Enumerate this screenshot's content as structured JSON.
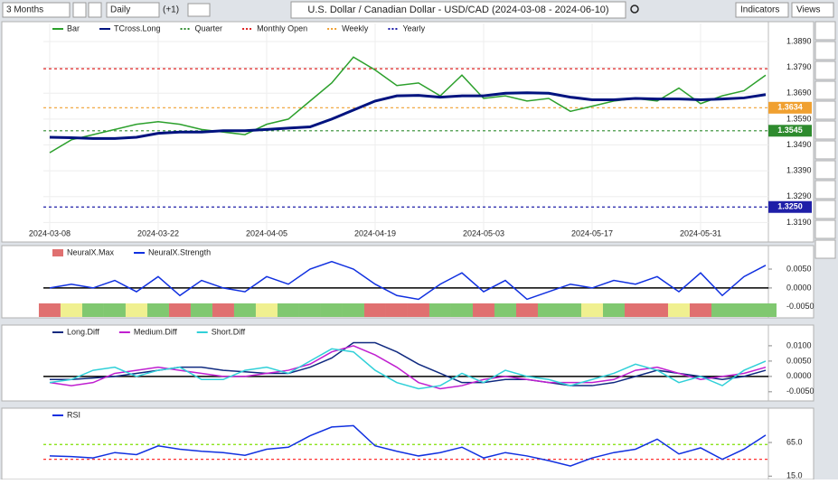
{
  "toolbar": {
    "range": "3 Months",
    "interval": "Daily",
    "offset": "(+1)",
    "title": "U.S. Dollar / Canadian Dollar - USD/CAD (2024-03-08 - 2024-06-10)",
    "indicators": "Indicators",
    "views": "Views"
  },
  "chart_data": [
    {
      "type": "line",
      "xlim": [
        -0.58,
        66.25
      ],
      "ylim": [
        1.316,
        1.396
      ],
      "grid": true,
      "xticks": [
        {
          "value": 0,
          "label": "2024-03-08"
        },
        {
          "value": 10,
          "label": "2024-03-22"
        },
        {
          "value": 20,
          "label": "2024-04-05"
        },
        {
          "value": 30,
          "label": "2024-04-19"
        },
        {
          "value": 40,
          "label": "2024-05-03"
        },
        {
          "value": 50,
          "label": "2024-05-17"
        },
        {
          "value": 60,
          "label": "2024-05-31"
        }
      ],
      "yticks": [
        {
          "value": 1.389,
          "label": "1.3890"
        },
        {
          "value": 1.379,
          "label": "1.3790"
        },
        {
          "value": 1.369,
          "label": "1.3690"
        },
        {
          "value": 1.359,
          "label": "1.3590"
        },
        {
          "value": 1.349,
          "label": "1.3490"
        },
        {
          "value": 1.339,
          "label": "1.3390"
        },
        {
          "value": 1.329,
          "label": "1.3290"
        },
        {
          "value": 1.319,
          "label": "1.3190"
        }
      ],
      "x": [
        0,
        2,
        4,
        6,
        8,
        10,
        12,
        14,
        16,
        18,
        20,
        22,
        24,
        26,
        28,
        30,
        32,
        34,
        36,
        38,
        40,
        42,
        44,
        46,
        48,
        50,
        52,
        54,
        56,
        58,
        60,
        62,
        64,
        66
      ],
      "series": [
        {
          "name": "Bar",
          "color": "#2ca02c",
          "values": [
            1.346,
            1.351,
            1.353,
            1.355,
            1.357,
            1.358,
            1.357,
            1.355,
            1.354,
            1.353,
            1.357,
            1.359,
            1.366,
            1.373,
            1.383,
            1.378,
            1.372,
            1.373,
            1.368,
            1.376,
            1.367,
            1.368,
            1.366,
            1.367,
            1.362,
            1.364,
            1.366,
            1.367,
            1.366,
            1.371,
            1.365,
            1.368,
            1.37,
            1.376
          ]
        },
        {
          "name": "TCross.Long",
          "color": "#00137f",
          "values": [
            1.352,
            1.3518,
            1.3515,
            1.3515,
            1.352,
            1.3535,
            1.354,
            1.354,
            1.3545,
            1.3545,
            1.355,
            1.3555,
            1.356,
            1.359,
            1.3625,
            1.366,
            1.368,
            1.3682,
            1.3675,
            1.368,
            1.368,
            1.369,
            1.3692,
            1.369,
            1.3675,
            1.3665,
            1.3665,
            1.367,
            1.3668,
            1.3668,
            1.3665,
            1.3668,
            1.3672,
            1.3685
          ]
        }
      ],
      "levels": [
        {
          "name": "Quarter",
          "color": "#2e8b2e",
          "value": 1.3545
        },
        {
          "name": "Monthly Open",
          "color": "#dd2222",
          "value": 1.3785
        },
        {
          "name": "Weekly",
          "color": "#f0a030",
          "value": 1.3634
        },
        {
          "name": "Yearly",
          "color": "#1f1fa8",
          "value": 1.325,
          "label": "1.3250"
        }
      ]
    },
    {
      "type": "line",
      "xlim": [
        -0.58,
        66.25
      ],
      "ylim": [
        -0.006,
        0.0093
      ],
      "baseline": 0,
      "yticks": [
        {
          "value": 0.005,
          "label": "0.0050"
        },
        {
          "value": 0,
          "label": "0.0000"
        },
        {
          "value": -0.005,
          "label": "-0.0050"
        }
      ],
      "x": [
        0,
        2,
        4,
        6,
        8,
        10,
        12,
        14,
        16,
        18,
        20,
        22,
        24,
        26,
        28,
        30,
        32,
        34,
        36,
        38,
        40,
        42,
        44,
        46,
        48,
        50,
        52,
        54,
        56,
        58,
        60,
        62,
        64,
        66
      ],
      "max_name": "NeuralX.Max",
      "strip_colors": [
        "#e07070",
        "#f0f090",
        "#80c870",
        "#80c870",
        "#f0f090",
        "#80c870",
        "#e07070",
        "#80c870",
        "#e07070",
        "#80c870",
        "#f0f090",
        "#80c870",
        "#80c870",
        "#80c870",
        "#80c870",
        "#e07070",
        "#e07070",
        "#e07070",
        "#80c870",
        "#80c870",
        "#e07070",
        "#80c870",
        "#e07070",
        "#80c870",
        "#80c870",
        "#f0f090",
        "#80c870",
        "#e07070",
        "#e07070",
        "#f0f090",
        "#e07070",
        "#80c870",
        "#80c870",
        "#80c870"
      ],
      "series": [
        {
          "name": "NeuralX.Strength",
          "color": "#1030e0",
          "values": [
            0,
            0.001,
            0,
            0.002,
            -0.001,
            0.003,
            -0.002,
            0.002,
            0,
            -0.001,
            0.003,
            0.001,
            0.005,
            0.007,
            0.005,
            0.001,
            -0.002,
            -0.003,
            0.001,
            0.004,
            -0.001,
            0.002,
            -0.003,
            -0.001,
            0.001,
            0,
            0.002,
            0.001,
            0.003,
            -0.001,
            0.004,
            -0.002,
            0.003,
            0.006
          ]
        }
      ]
    },
    {
      "type": "line",
      "xlim": [
        -0.58,
        66.25
      ],
      "ylim": [
        -0.0074,
        0.0138
      ],
      "baseline": 0,
      "yticks": [
        {
          "value": 0.01,
          "label": "0.0100"
        },
        {
          "value": 0.005,
          "label": "0.0050"
        },
        {
          "value": 0,
          "label": "0.0000"
        },
        {
          "value": -0.005,
          "label": "-0.0050"
        }
      ],
      "x": [
        0,
        2,
        4,
        6,
        8,
        10,
        12,
        14,
        16,
        18,
        20,
        22,
        24,
        26,
        28,
        30,
        32,
        34,
        36,
        38,
        40,
        42,
        44,
        46,
        48,
        50,
        52,
        54,
        56,
        58,
        60,
        62,
        64,
        66
      ],
      "series": [
        {
          "name": "Long.Diff",
          "color": "#102a80",
          "values": [
            -0.001,
            -0.001,
            -0.0005,
            0,
            0.001,
            0.002,
            0.003,
            0.003,
            0.002,
            0.0015,
            0.001,
            0.001,
            0.003,
            0.006,
            0.011,
            0.011,
            0.008,
            0.004,
            0.001,
            -0.002,
            -0.002,
            -0.001,
            -0.001,
            -0.002,
            -0.003,
            -0.003,
            -0.002,
            0,
            0.002,
            0.001,
            0,
            -0.001,
            0,
            0.002
          ]
        },
        {
          "name": "Medium.Diff",
          "color": "#c020d0",
          "values": [
            -0.002,
            -0.003,
            -0.002,
            0.001,
            0.002,
            0.003,
            0.002,
            0.001,
            0,
            0,
            0.001,
            0.002,
            0.004,
            0.008,
            0.01,
            0.007,
            0.003,
            -0.002,
            -0.004,
            -0.003,
            -0.001,
            0,
            -0.001,
            -0.002,
            -0.002,
            -0.002,
            -0.001,
            0.002,
            0.003,
            0.001,
            -0.001,
            0,
            0.001,
            0.003
          ]
        },
        {
          "name": "Short.Diff",
          "color": "#30d0d8",
          "values": [
            -0.002,
            -0.001,
            0.002,
            0.003,
            0,
            0.002,
            0.003,
            -0.001,
            -0.001,
            0.002,
            0.003,
            0.001,
            0.005,
            0.009,
            0.008,
            0.002,
            -0.002,
            -0.004,
            -0.003,
            0.001,
            -0.002,
            0.002,
            0,
            -0.001,
            -0.003,
            -0.001,
            0.001,
            0.004,
            0.002,
            -0.002,
            0,
            -0.003,
            0.002,
            0.005
          ]
        }
      ]
    },
    {
      "type": "line",
      "xlim": [
        -0.58,
        66.25
      ],
      "ylim": [
        10,
        108
      ],
      "yticks": [
        {
          "value": 65,
          "label": "65.0"
        },
        {
          "value": 15,
          "label": "15.0"
        }
      ],
      "levels": [
        {
          "color": "#7fe000",
          "value": 62
        },
        {
          "color": "#ff3030",
          "value": 40
        }
      ],
      "x": [
        0,
        2,
        4,
        6,
        8,
        10,
        12,
        14,
        16,
        18,
        20,
        22,
        24,
        26,
        28,
        30,
        32,
        34,
        36,
        38,
        40,
        42,
        44,
        46,
        48,
        50,
        52,
        54,
        56,
        58,
        60,
        62,
        64,
        66
      ],
      "series": [
        {
          "name": "RSI",
          "color": "#1030e0",
          "values": [
            45,
            44,
            42,
            50,
            47,
            60,
            55,
            52,
            50,
            46,
            55,
            58,
            75,
            88,
            90,
            60,
            52,
            45,
            50,
            58,
            42,
            50,
            45,
            38,
            30,
            42,
            50,
            55,
            70,
            48,
            57,
            40,
            55,
            76
          ]
        }
      ]
    }
  ]
}
